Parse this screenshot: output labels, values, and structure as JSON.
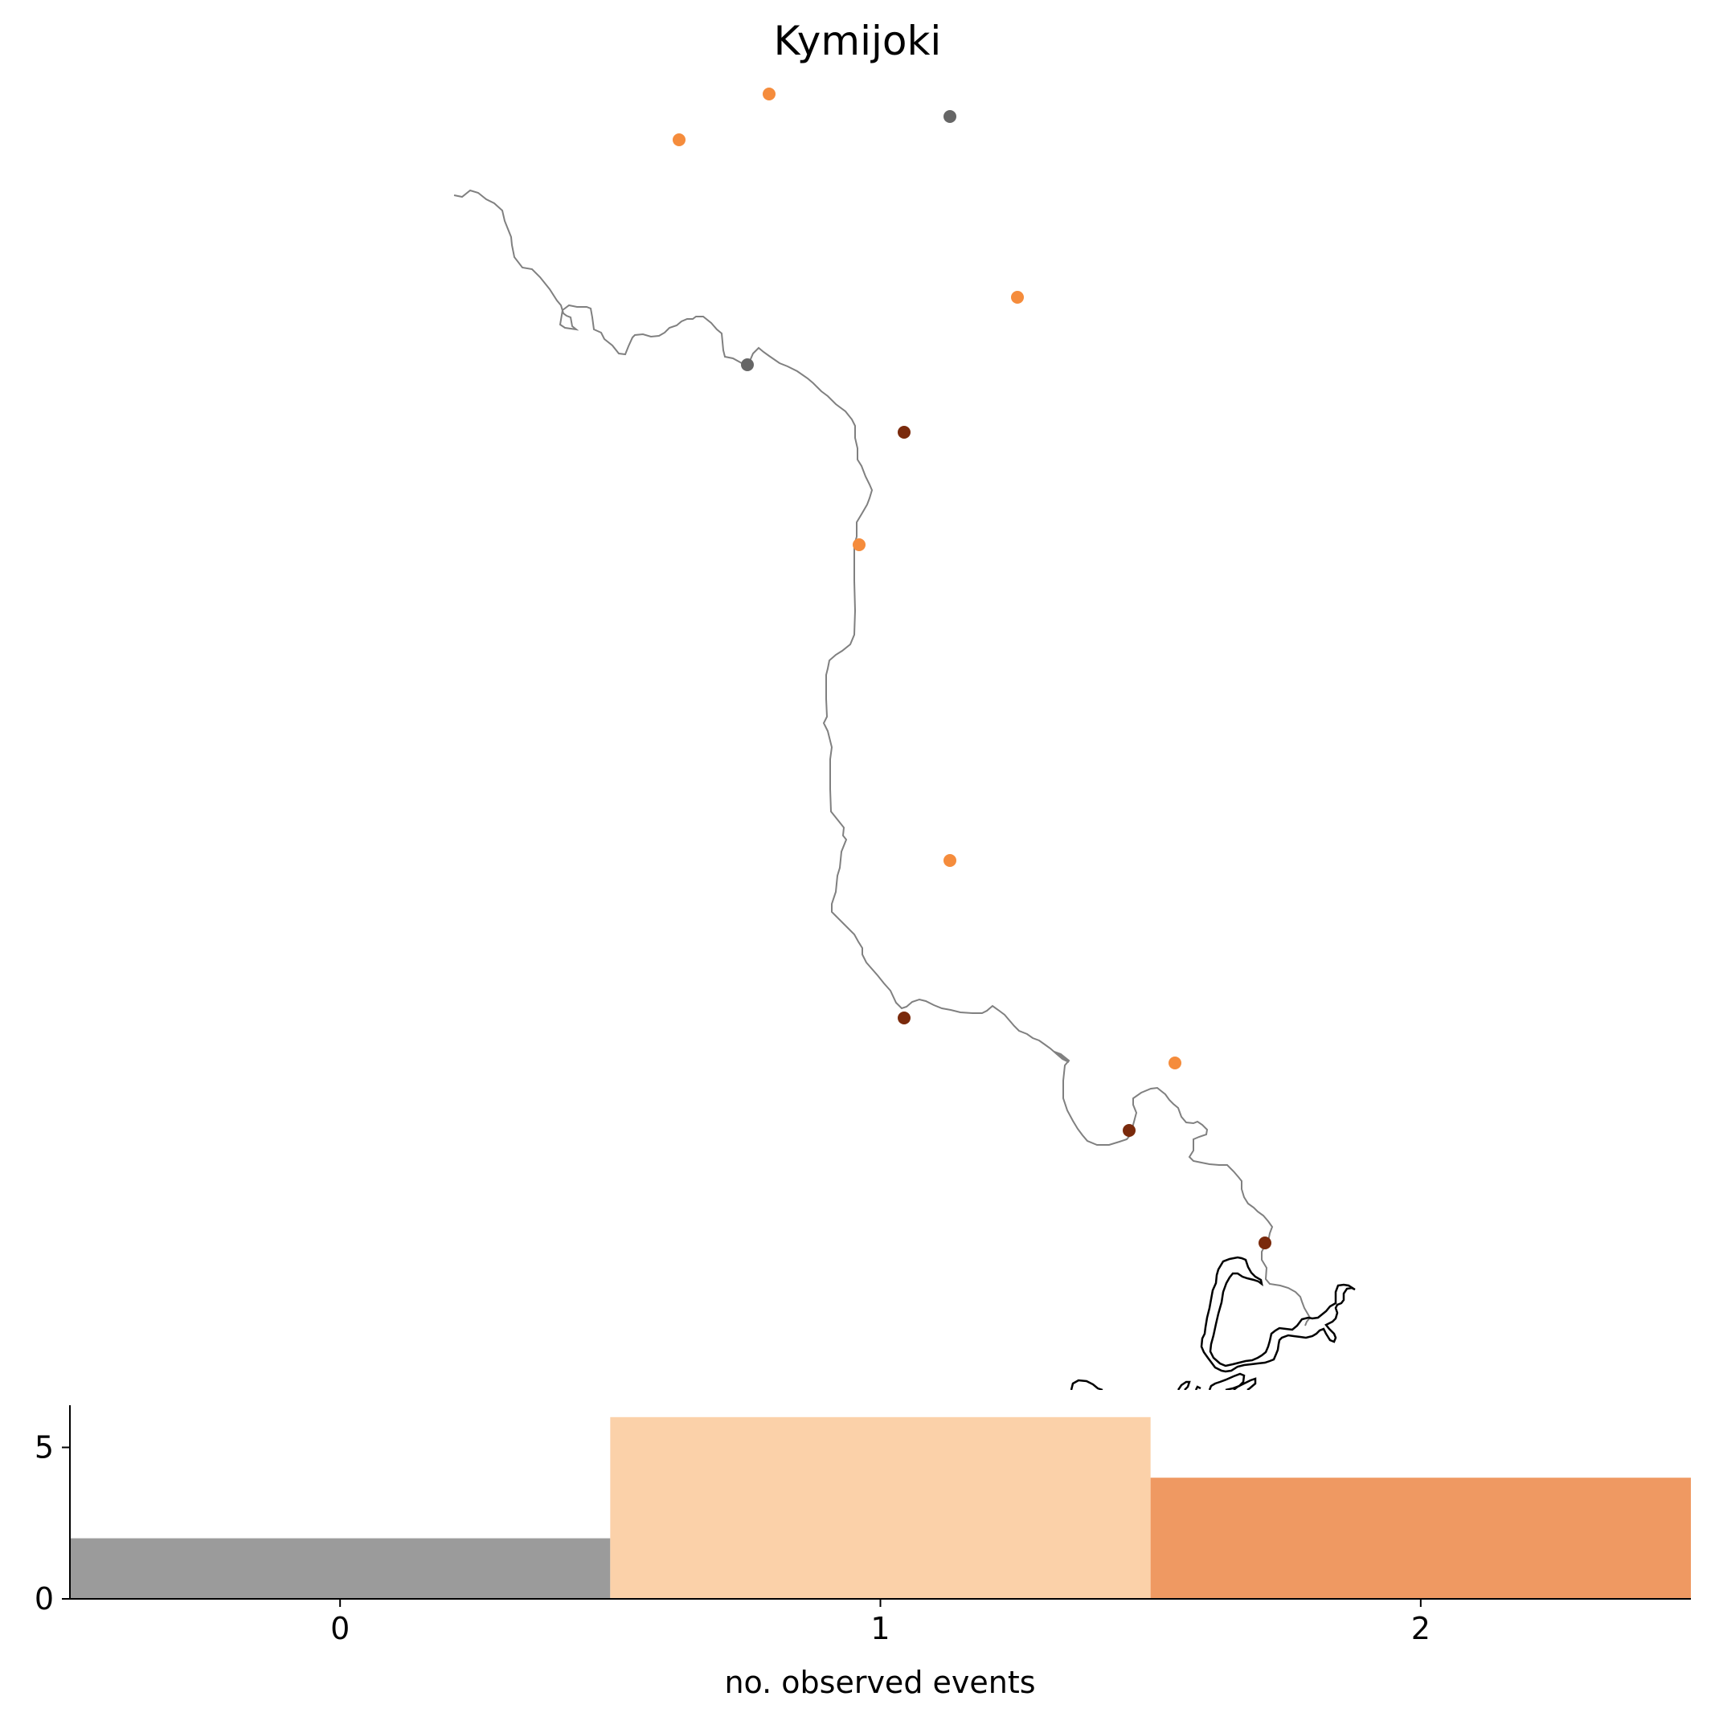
{
  "title": "Kymijoki",
  "colors": {
    "river": "#808080",
    "coast": "#000000",
    "no_events": "#666666",
    "one_event": "#f58c3c",
    "two_events": "#7a2a0c",
    "hist_zero": "#9b9b9b",
    "hist_one": "#fbd1a9",
    "hist_two": "#ef9962"
  },
  "chart_data": {
    "type": "bar",
    "categories": [
      "0",
      "1",
      "2"
    ],
    "values": [
      2,
      6,
      4
    ],
    "xlabel": "no. observed events",
    "ylabel": "",
    "ylim": [
      0,
      6.3
    ],
    "yticks": [
      "0",
      "5"
    ],
    "grid": false
  }
}
